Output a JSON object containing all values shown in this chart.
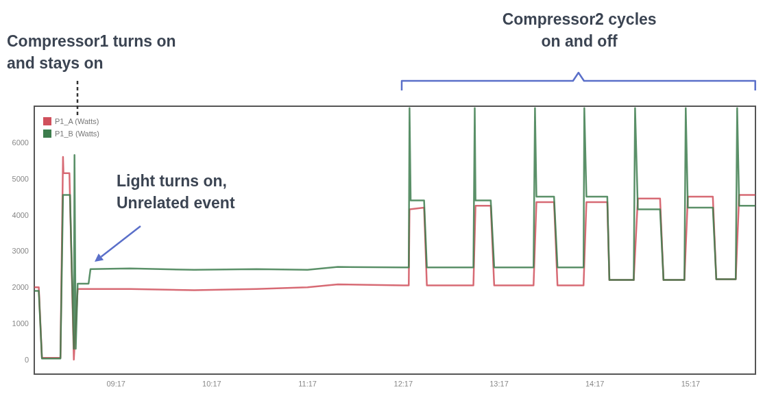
{
  "chart_data": {
    "type": "line",
    "legend": "top left",
    "grid": false,
    "marker": "none",
    "line_style": "solid",
    "xlim": [
      8.43,
      15.96
    ],
    "xticks": [
      {
        "value": 9.283,
        "label": "09:17"
      },
      {
        "value": 10.283,
        "label": "10:17"
      },
      {
        "value": 11.283,
        "label": "11:17"
      },
      {
        "value": 12.283,
        "label": "12:17"
      },
      {
        "value": 13.283,
        "label": "13:17"
      },
      {
        "value": 14.283,
        "label": "14:17"
      },
      {
        "value": 15.283,
        "label": "15:17"
      }
    ],
    "ylim": [
      -400,
      7000
    ],
    "yticks": [
      0,
      1000,
      2000,
      3000,
      4000,
      5000,
      6000
    ],
    "series": [
      {
        "name": "P1_A (Watts)",
        "color": "#d0505c",
        "x": [
          8.43,
          8.477,
          8.51,
          8.703,
          8.73,
          8.735,
          8.797,
          8.843,
          8.883,
          9.43,
          10.1,
          10.75,
          11.283,
          11.6,
          12.283,
          12.34,
          12.348,
          12.5,
          12.529,
          13.015,
          13.037,
          13.196,
          13.232,
          13.643,
          13.673,
          13.857,
          13.893,
          14.165,
          14.195,
          14.413,
          14.435,
          14.689,
          14.732,
          14.964,
          15.0,
          15.218,
          15.254,
          15.515,
          15.551,
          15.754,
          15.79,
          15.957
        ],
        "values": [
          2000,
          2000,
          50,
          50,
          5600,
          5150,
          5150,
          0,
          1950,
          1950,
          1920,
          1950,
          2000,
          2080,
          2050,
          2050,
          4150,
          4200,
          2050,
          2050,
          4250,
          4250,
          2050,
          2050,
          4350,
          4350,
          2050,
          2050,
          4350,
          4350,
          2200,
          2200,
          4450,
          4450,
          2200,
          2200,
          4500,
          4500,
          2220,
          2220,
          4550,
          4550
        ]
      },
      {
        "name": "P1_B (Watts)",
        "color": "#3d7d4d",
        "x": [
          8.43,
          8.477,
          8.51,
          8.703,
          8.73,
          8.803,
          8.843,
          8.85,
          8.863,
          8.883,
          8.997,
          9.017,
          9.43,
          10.1,
          10.75,
          11.283,
          11.6,
          12.283,
          12.34,
          12.348,
          12.36,
          12.5,
          12.529,
          13.015,
          13.029,
          13.037,
          13.196,
          13.232,
          13.643,
          13.658,
          13.673,
          13.857,
          13.893,
          14.165,
          14.173,
          14.195,
          14.413,
          14.435,
          14.689,
          14.703,
          14.732,
          14.964,
          15.0,
          15.218,
          15.232,
          15.254,
          15.515,
          15.551,
          15.754,
          15.769,
          15.79,
          15.957
        ],
        "values": [
          1900,
          1900,
          30,
          30,
          4550,
          4550,
          300,
          5650,
          300,
          2100,
          2100,
          2500,
          2520,
          2480,
          2500,
          2480,
          2560,
          2550,
          2550,
          6950,
          4400,
          4400,
          2550,
          2550,
          6950,
          4400,
          4400,
          2550,
          2550,
          6950,
          4500,
          4500,
          2550,
          2550,
          6950,
          4500,
          4500,
          2200,
          2200,
          6950,
          4150,
          4150,
          2200,
          2200,
          6950,
          4200,
          4200,
          2220,
          2220,
          6950,
          4250,
          4250
        ]
      }
    ],
    "annotations": [
      "Compressor1 turns on and stays on",
      "Light turns on, Unrelated event",
      "Compressor2 cycles on and off"
    ]
  }
}
